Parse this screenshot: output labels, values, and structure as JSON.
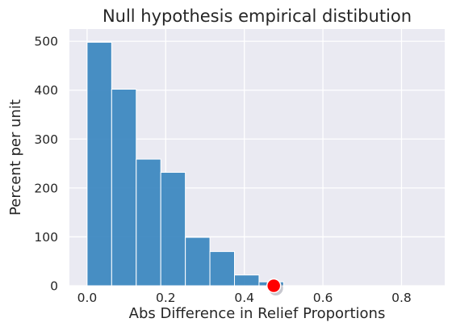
{
  "chart_data": {
    "type": "bar",
    "title": "Null hypothesis empirical distibution",
    "xlabel": "Abs Difference in Relief Proportions",
    "ylabel": "Percent per unit",
    "xlim": [
      -0.045,
      0.91
    ],
    "ylim": [
      0,
      525
    ],
    "xticks": [
      "0.0",
      "0.2",
      "0.4",
      "0.6",
      "0.8"
    ],
    "xtick_values": [
      0.0,
      0.2,
      0.4,
      0.6,
      0.8
    ],
    "yticks": [
      "0",
      "100",
      "200",
      "300",
      "400",
      "500"
    ],
    "ytick_values": [
      0,
      100,
      200,
      300,
      400,
      500
    ],
    "grid": true,
    "bin_width": 0.0625,
    "bins": [
      {
        "x0": 0.0,
        "x1": 0.0625,
        "value": 498
      },
      {
        "x0": 0.0625,
        "x1": 0.125,
        "value": 402
      },
      {
        "x0": 0.125,
        "x1": 0.1875,
        "value": 259
      },
      {
        "x0": 0.1875,
        "x1": 0.25,
        "value": 232
      },
      {
        "x0": 0.25,
        "x1": 0.3125,
        "value": 99
      },
      {
        "x0": 0.3125,
        "x1": 0.375,
        "value": 70
      },
      {
        "x0": 0.375,
        "x1": 0.4375,
        "value": 22
      },
      {
        "x0": 0.4375,
        "x1": 0.5,
        "value": 8
      }
    ],
    "observed_point": {
      "x": 0.475,
      "y": 0
    },
    "colors": {
      "bar": "#3a87c0",
      "bar_edge": "#ffffff",
      "plot_bg": "#eaeaf2",
      "grid": "#ffffff",
      "point": "#ff0000"
    }
  }
}
